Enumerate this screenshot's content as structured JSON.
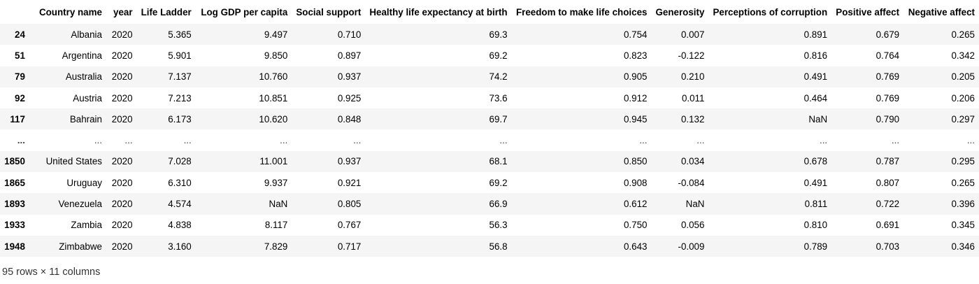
{
  "table": {
    "index_header": "",
    "columns": [
      "Country name",
      "year",
      "Life Ladder",
      "Log GDP per capita",
      "Social support",
      "Healthy life expectancy at birth",
      "Freedom to make life choices",
      "Generosity",
      "Perceptions of corruption",
      "Positive affect",
      "Negative affect"
    ],
    "rows": [
      {
        "index": "24",
        "cells": [
          "Albania",
          "2020",
          "5.365",
          "9.497",
          "0.710",
          "69.3",
          "0.754",
          "0.007",
          "0.891",
          "0.679",
          "0.265"
        ]
      },
      {
        "index": "51",
        "cells": [
          "Argentina",
          "2020",
          "5.901",
          "9.850",
          "0.897",
          "69.2",
          "0.823",
          "-0.122",
          "0.816",
          "0.764",
          "0.342"
        ]
      },
      {
        "index": "79",
        "cells": [
          "Australia",
          "2020",
          "7.137",
          "10.760",
          "0.937",
          "74.2",
          "0.905",
          "0.210",
          "0.491",
          "0.769",
          "0.205"
        ]
      },
      {
        "index": "92",
        "cells": [
          "Austria",
          "2020",
          "7.213",
          "10.851",
          "0.925",
          "73.6",
          "0.912",
          "0.011",
          "0.464",
          "0.769",
          "0.206"
        ]
      },
      {
        "index": "117",
        "cells": [
          "Bahrain",
          "2020",
          "6.173",
          "10.620",
          "0.848",
          "69.7",
          "0.945",
          "0.132",
          "NaN",
          "0.790",
          "0.297"
        ]
      },
      {
        "index": "...",
        "cells": [
          "...",
          "...",
          "...",
          "...",
          "...",
          "...",
          "...",
          "...",
          "...",
          "...",
          "..."
        ]
      },
      {
        "index": "1850",
        "cells": [
          "United States",
          "2020",
          "7.028",
          "11.001",
          "0.937",
          "68.1",
          "0.850",
          "0.034",
          "0.678",
          "0.787",
          "0.295"
        ]
      },
      {
        "index": "1865",
        "cells": [
          "Uruguay",
          "2020",
          "6.310",
          "9.937",
          "0.921",
          "69.2",
          "0.908",
          "-0.084",
          "0.491",
          "0.807",
          "0.265"
        ]
      },
      {
        "index": "1893",
        "cells": [
          "Venezuela",
          "2020",
          "4.574",
          "NaN",
          "0.805",
          "66.9",
          "0.612",
          "NaN",
          "0.811",
          "0.722",
          "0.396"
        ]
      },
      {
        "index": "1933",
        "cells": [
          "Zambia",
          "2020",
          "4.838",
          "8.117",
          "0.767",
          "56.3",
          "0.750",
          "0.056",
          "0.810",
          "0.691",
          "0.345"
        ]
      },
      {
        "index": "1948",
        "cells": [
          "Zimbabwe",
          "2020",
          "3.160",
          "7.829",
          "0.717",
          "56.8",
          "0.643",
          "-0.009",
          "0.789",
          "0.703",
          "0.346"
        ]
      }
    ]
  },
  "footer": {
    "shape_text": "95 rows × 11 columns"
  }
}
